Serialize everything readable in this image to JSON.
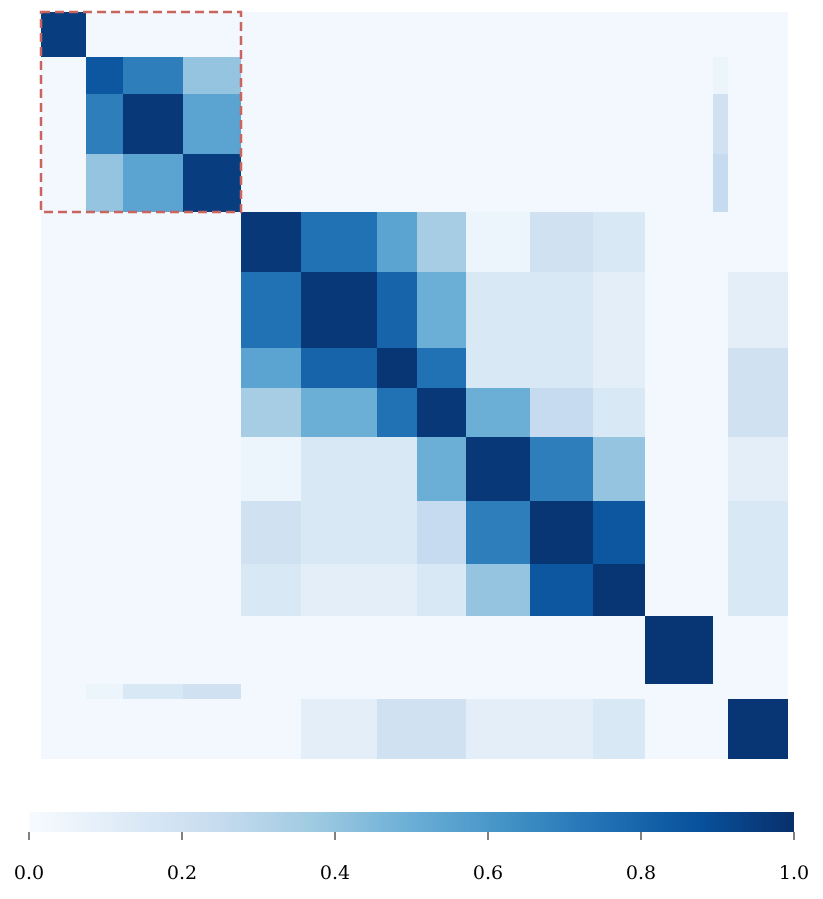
{
  "chart_data": {
    "type": "heatmap",
    "title": "",
    "xlabel": "",
    "ylabel": "",
    "colormap": "Blues",
    "colors": {
      "low": "#f7fbff",
      "high": "#08306b",
      "highlight_box": "#c8655f"
    },
    "value_range": [
      0.0,
      1.0
    ],
    "highlight_block": {
      "rows": [
        0,
        3
      ],
      "cols": [
        0,
        3
      ],
      "style": "dashed"
    },
    "n_cells": 14,
    "cell_values": [
      [
        0.95,
        0.02,
        0.02,
        0.02,
        0.02,
        0.02,
        0.02,
        0.02,
        0.02,
        0.02,
        0.02,
        0.02,
        0.02,
        0.02
      ],
      [
        0.02,
        0.85,
        0.7,
        0.4,
        0.02,
        0.02,
        0.02,
        0.02,
        0.02,
        0.02,
        0.02,
        0.02,
        0.05,
        0.02
      ],
      [
        0.02,
        0.7,
        0.97,
        0.55,
        0.02,
        0.02,
        0.02,
        0.02,
        0.02,
        0.02,
        0.02,
        0.02,
        0.2,
        0.02
      ],
      [
        0.02,
        0.4,
        0.55,
        0.95,
        0.02,
        0.02,
        0.02,
        0.02,
        0.02,
        0.02,
        0.02,
        0.02,
        0.25,
        0.02
      ],
      [
        0.02,
        0.02,
        0.02,
        0.02,
        0.97,
        0.75,
        0.55,
        0.35,
        0.05,
        0.2,
        0.15,
        0.02,
        0.02,
        0.02
      ],
      [
        0.02,
        0.02,
        0.02,
        0.02,
        0.75,
        0.97,
        0.8,
        0.5,
        0.15,
        0.15,
        0.1,
        0.02,
        0.02,
        0.1
      ],
      [
        0.02,
        0.02,
        0.02,
        0.02,
        0.55,
        0.8,
        0.98,
        0.75,
        0.15,
        0.15,
        0.1,
        0.02,
        0.02,
        0.2
      ],
      [
        0.02,
        0.02,
        0.02,
        0.02,
        0.35,
        0.5,
        0.75,
        0.97,
        0.5,
        0.25,
        0.15,
        0.02,
        0.02,
        0.2
      ],
      [
        0.02,
        0.02,
        0.02,
        0.02,
        0.05,
        0.15,
        0.15,
        0.5,
        0.97,
        0.7,
        0.4,
        0.02,
        0.02,
        0.1
      ],
      [
        0.02,
        0.02,
        0.02,
        0.02,
        0.2,
        0.15,
        0.15,
        0.25,
        0.7,
        0.98,
        0.85,
        0.02,
        0.02,
        0.15
      ],
      [
        0.02,
        0.02,
        0.02,
        0.02,
        0.15,
        0.1,
        0.1,
        0.15,
        0.4,
        0.85,
        0.98,
        0.02,
        0.02,
        0.15
      ],
      [
        0.02,
        0.02,
        0.02,
        0.02,
        0.02,
        0.02,
        0.02,
        0.02,
        0.02,
        0.02,
        0.02,
        0.98,
        0.02,
        0.02
      ],
      [
        0.02,
        0.05,
        0.15,
        0.2,
        0.02,
        0.02,
        0.02,
        0.02,
        0.02,
        0.02,
        0.02,
        0.02,
        0.02,
        0.02
      ],
      [
        0.02,
        0.02,
        0.02,
        0.02,
        0.02,
        0.1,
        0.2,
        0.2,
        0.1,
        0.1,
        0.15,
        0.02,
        0.02,
        0.98
      ]
    ],
    "colorbar": {
      "orientation": "horizontal",
      "ticks": [
        0.0,
        0.2,
        0.4,
        0.6,
        0.8,
        1.0
      ],
      "tick_labels": [
        "0.0",
        "0.2",
        "0.4",
        "0.6",
        "0.8",
        "1.0"
      ]
    }
  }
}
